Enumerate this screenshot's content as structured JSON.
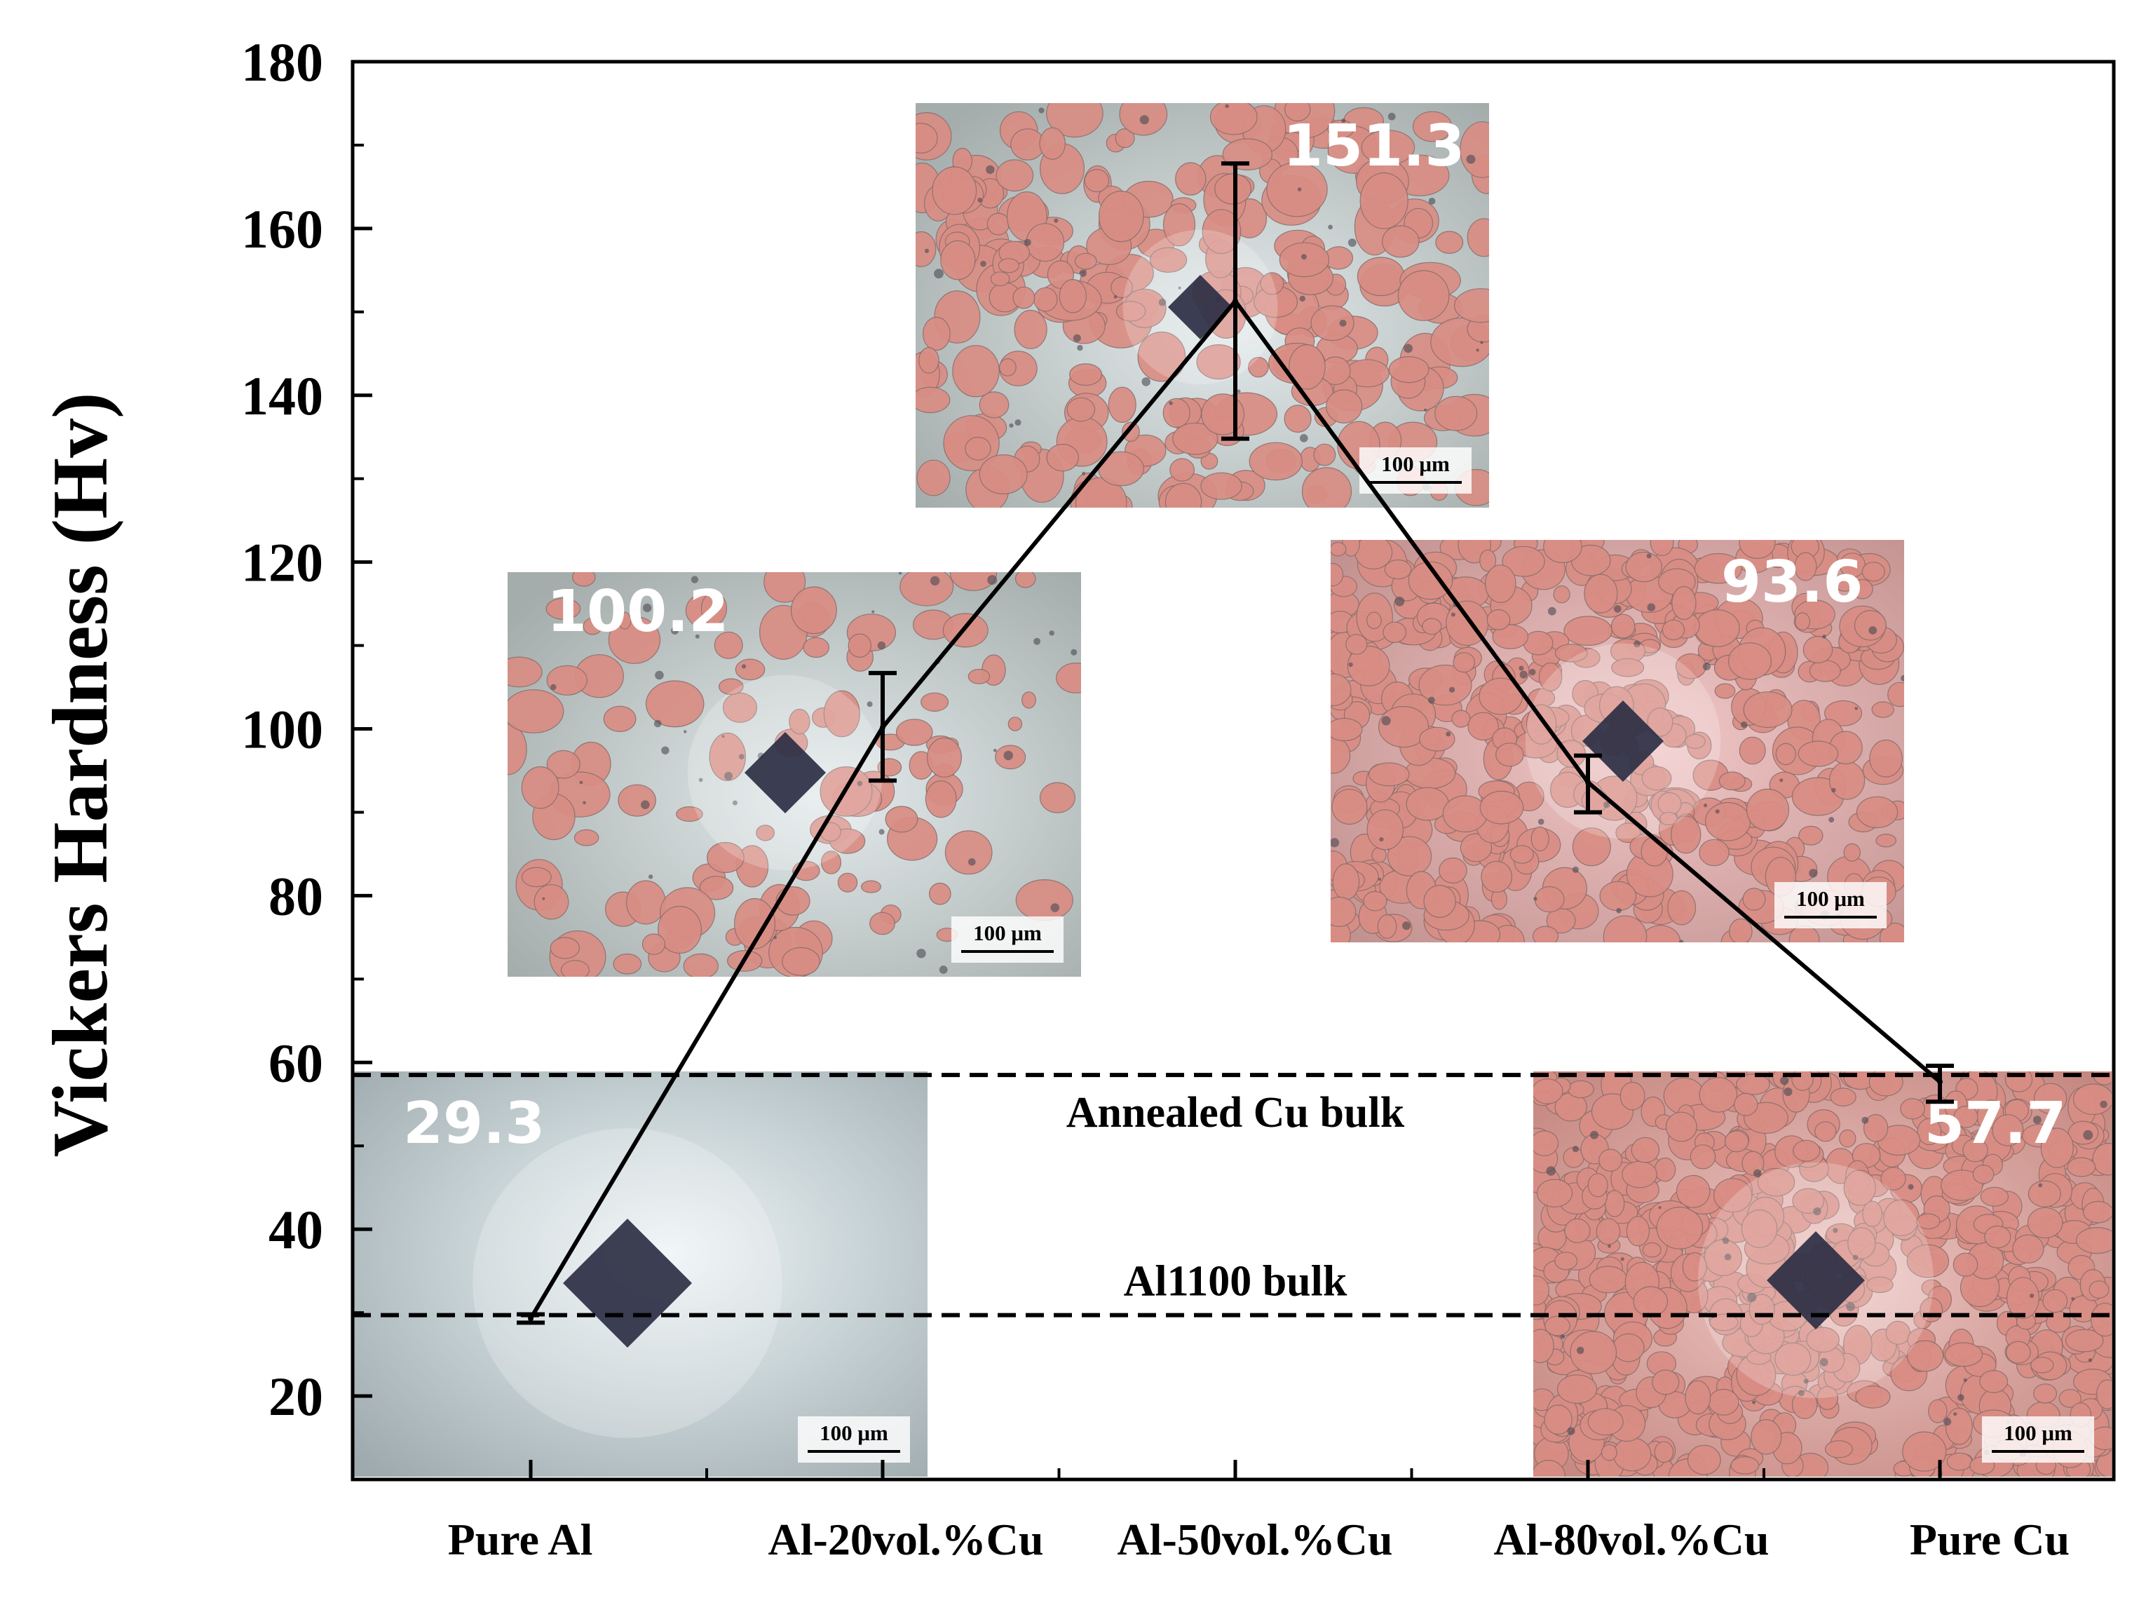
{
  "chart_data": {
    "type": "line",
    "title": "",
    "xlabel": "",
    "ylabel": "Vickers Hardness (Hv)",
    "categories": [
      "Pure Al",
      "Al-20vol.%Cu",
      "Al-50vol.%Cu",
      "Al-80vol.%Cu",
      "Pure Cu"
    ],
    "series": [
      {
        "name": "Vickers hardness",
        "values": [
          29.3,
          100.2,
          151.3,
          93.6,
          57.7
        ],
        "error_low": [
          28.8,
          93.8,
          134.8,
          90.0,
          55.3
        ],
        "error_high": [
          29.8,
          106.7,
          167.8,
          96.8,
          59.6
        ]
      }
    ],
    "value_labels": [
      "29.3",
      "100.2",
      "151.3",
      "93.6",
      "57.7"
    ],
    "ylim": [
      10,
      180
    ],
    "yticks": [
      20,
      40,
      60,
      80,
      100,
      120,
      140,
      160,
      180
    ],
    "reference_lines": [
      {
        "name": "Annealed Cu bulk",
        "value": 58.5
      },
      {
        "name": "Al1100 bulk",
        "value": 29.7
      }
    ],
    "micrographs": [
      {
        "sample": "Pure Al",
        "scale_bar": "100 μm",
        "copper_fraction": 0.0
      },
      {
        "sample": "Al-20vol.%Cu",
        "scale_bar": "100 μm",
        "copper_fraction": 0.2
      },
      {
        "sample": "Al-50vol.%Cu",
        "scale_bar": "100 μm",
        "copper_fraction": 0.5
      },
      {
        "sample": "Al-80vol.%Cu",
        "scale_bar": "100 μm",
        "copper_fraction": 0.8
      },
      {
        "sample": "Pure Cu",
        "scale_bar": "100 μm",
        "copper_fraction": 1.0
      }
    ],
    "colors": {
      "line": "#000000",
      "aluminum_matrix": "#a9b2b0",
      "copper_particle": "#d98d84",
      "pure_al_surface": "#c2cdd0",
      "pure_cu_surface": "#cf9890",
      "indent": "#2d2f44",
      "value_label": "#ffffff"
    }
  }
}
